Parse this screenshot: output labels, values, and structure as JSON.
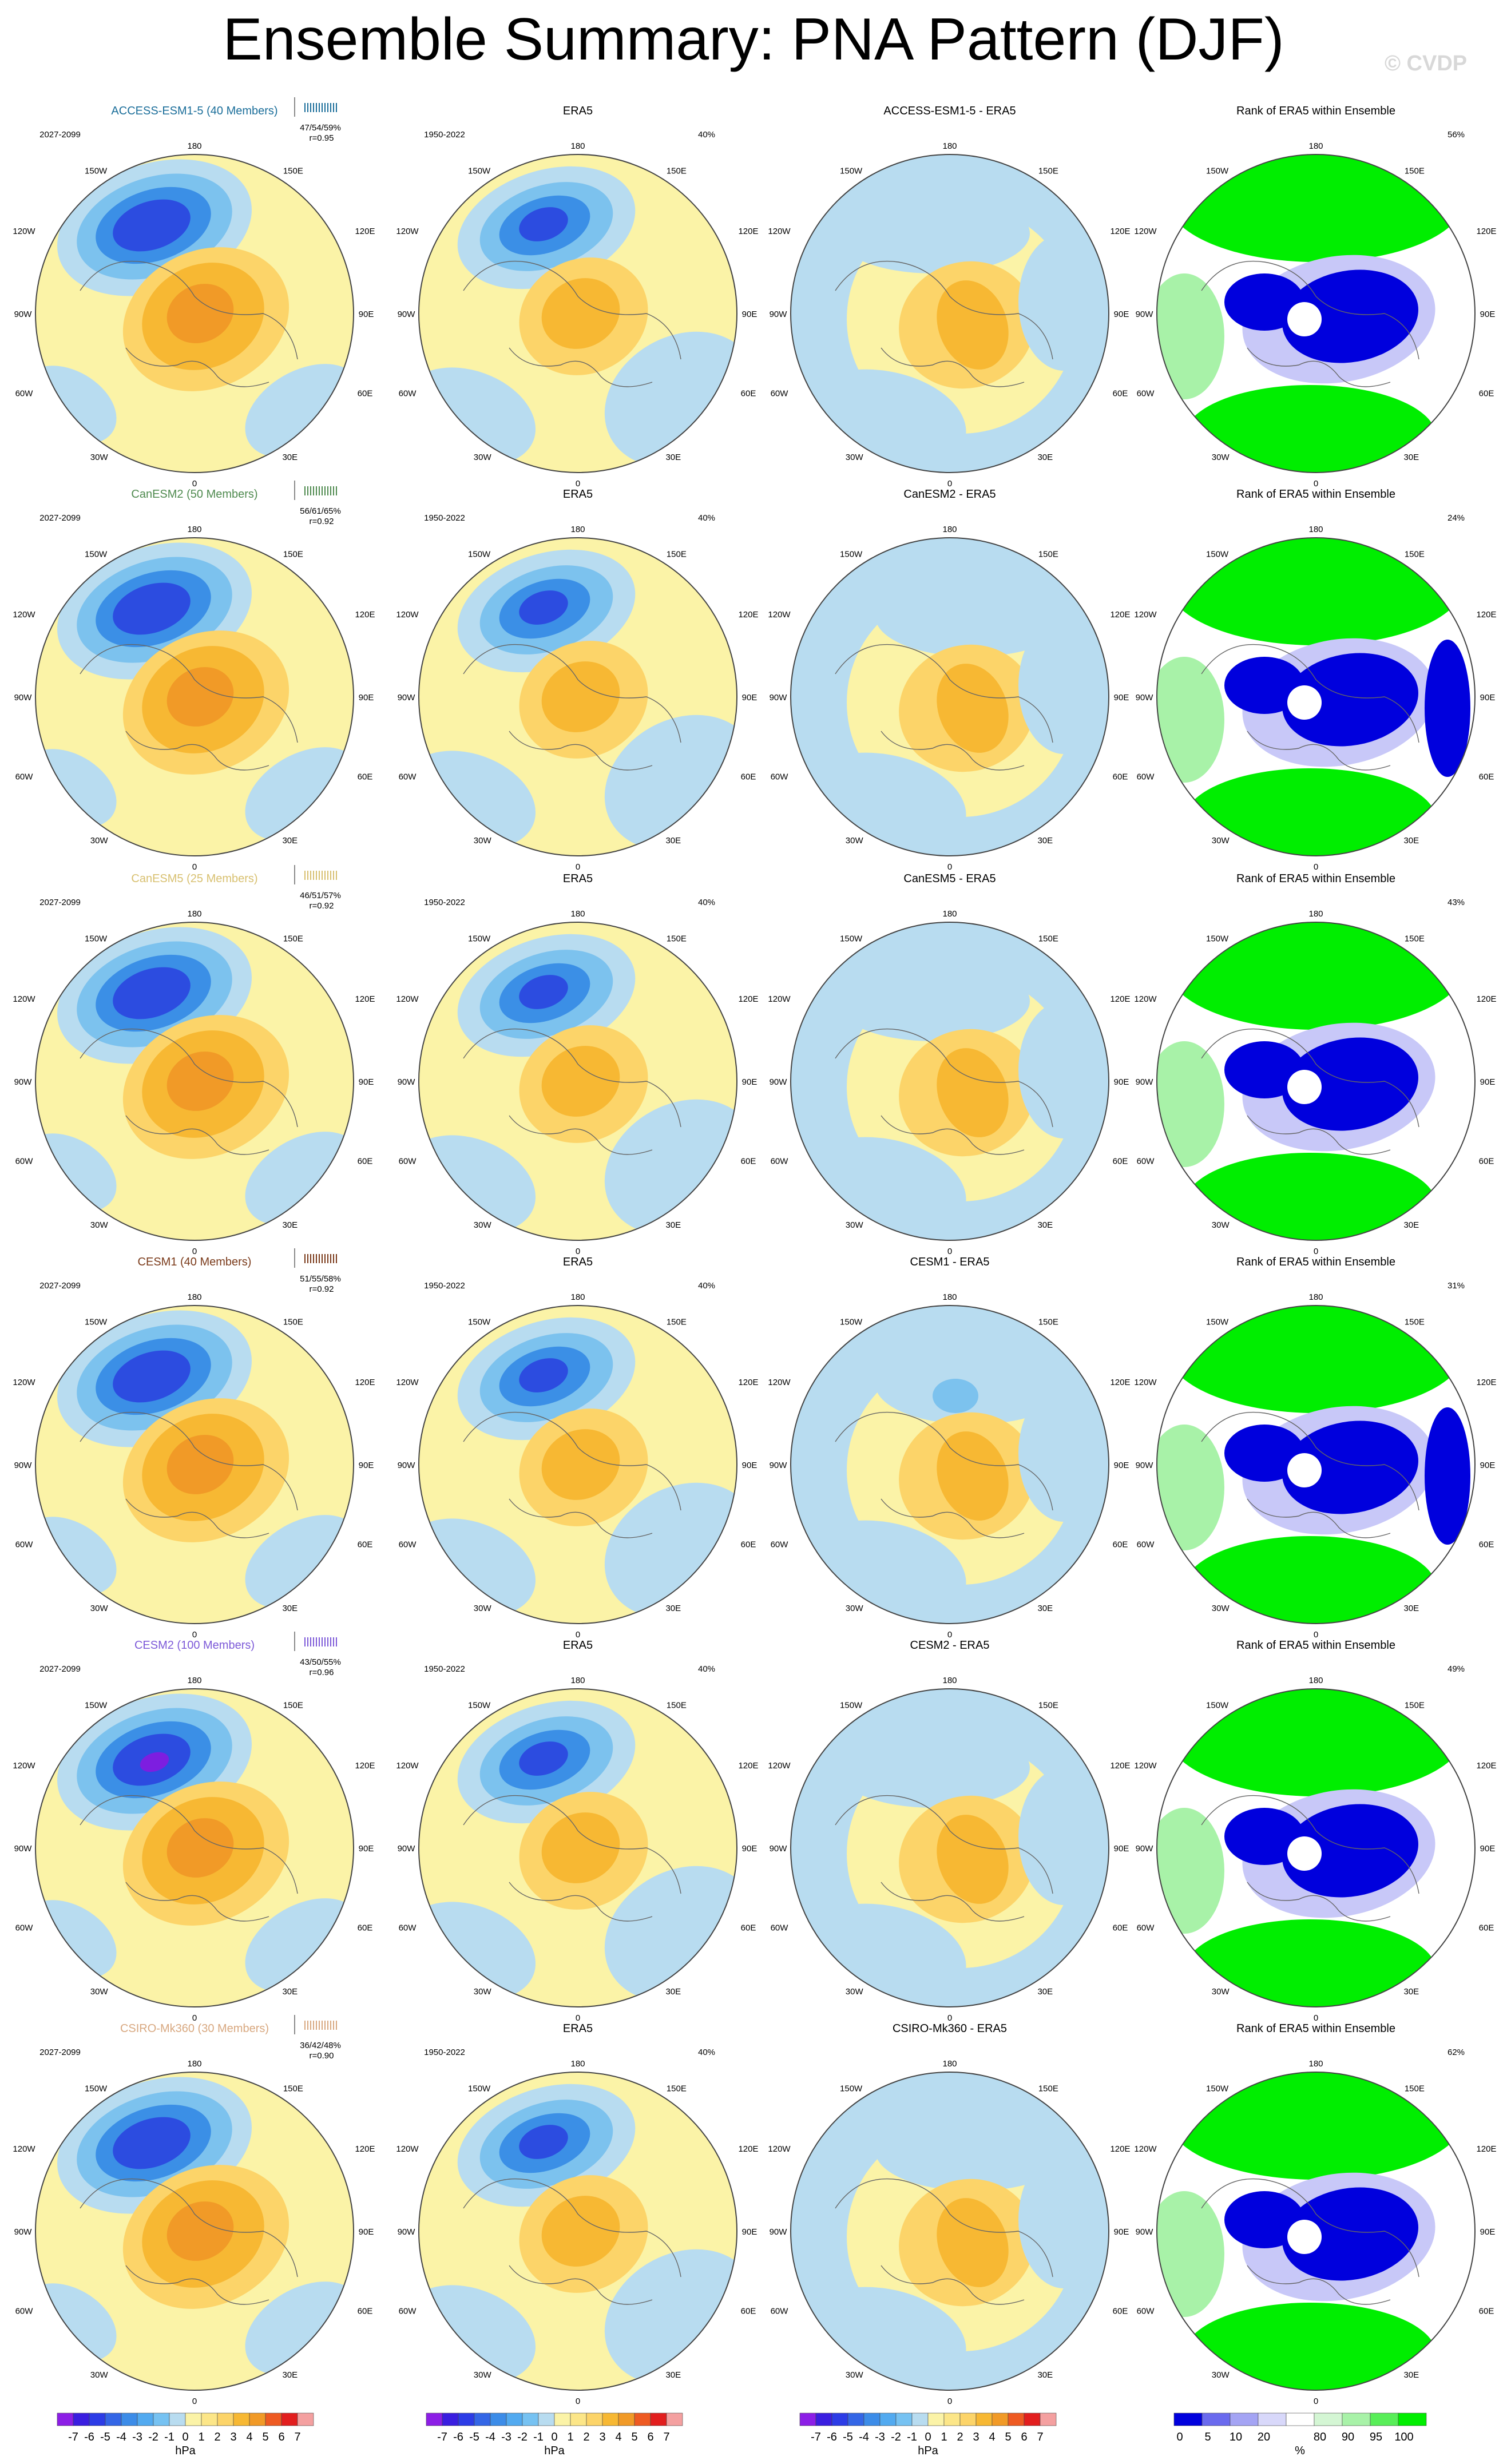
{
  "title": "Ensemble Summary: PNA Pattern (DJF)",
  "watermark": "© CVDP",
  "colors": {
    "yellow": "#fbf3a7",
    "light_blue": "#b8dcf0",
    "mid_blue": "#7cc2ee",
    "blue": "#3b8fe6",
    "dark_blue": "#2c4ce0",
    "navy": "#1c26c8",
    "purple": "#7d1ee0",
    "orange_light": "#fcd469",
    "orange": "#f7b833",
    "orange_dark": "#f19a27",
    "rank_green": "#00ee00",
    "rank_light_green": "#a8f2a8",
    "rank_blue": "#0000dd",
    "rank_light_blue": "#c8c8f8"
  },
  "rows": [
    {
      "model_title": "ACCESS-ESM1-5 (40 Members)",
      "title_color": "#1b6e9a",
      "model_years": "2027-2099",
      "model_stats": "47/54/59%",
      "model_r": "r=0.95",
      "obs_title": "ERA5",
      "obs_years": "1950-2022",
      "obs_pct": "40%",
      "diff_title": "ACCESS-ESM1-5 - ERA5",
      "rank_title": "Rank of ERA5 within Ensemble",
      "rank_pct": "56%"
    },
    {
      "model_title": "CanESM2 (50 Members)",
      "title_color": "#4f8a4f",
      "model_years": "2027-2099",
      "model_stats": "56/61/65%",
      "model_r": "r=0.92",
      "obs_title": "ERA5",
      "obs_years": "1950-2022",
      "obs_pct": "40%",
      "diff_title": "CanESM2 - ERA5",
      "rank_title": "Rank of ERA5 within Ensemble",
      "rank_pct": "24%"
    },
    {
      "model_title": "CanESM5 (25 Members)",
      "title_color": "#d8c070",
      "model_years": "2027-2099",
      "model_stats": "46/51/57%",
      "model_r": "r=0.92",
      "obs_title": "ERA5",
      "obs_years": "1950-2022",
      "obs_pct": "40%",
      "diff_title": "CanESM5 - ERA5",
      "rank_title": "Rank of ERA5 within Ensemble",
      "rank_pct": "43%"
    },
    {
      "model_title": "CESM1 (40 Members)",
      "title_color": "#7a3a1a",
      "model_years": "2027-2099",
      "model_stats": "51/55/58%",
      "model_r": "r=0.92",
      "obs_title": "ERA5",
      "obs_years": "1950-2022",
      "obs_pct": "40%",
      "diff_title": "CESM1 - ERA5",
      "rank_title": "Rank of ERA5 within Ensemble",
      "rank_pct": "31%"
    },
    {
      "model_title": "CESM2 (100 Members)",
      "title_color": "#7d5ad8",
      "model_years": "2027-2099",
      "model_stats": "43/50/55%",
      "model_r": "r=0.96",
      "obs_title": "ERA5",
      "obs_years": "1950-2022",
      "obs_pct": "40%",
      "diff_title": "CESM2 - ERA5",
      "rank_title": "Rank of ERA5 within Ensemble",
      "rank_pct": "49%"
    },
    {
      "model_title": "CSIRO-Mk360 (30 Members)",
      "title_color": "#d8a880",
      "model_years": "2027-2099",
      "model_stats": "36/42/48%",
      "model_r": "r=0.90",
      "obs_title": "ERA5",
      "obs_years": "1950-2022",
      "obs_pct": "40%",
      "diff_title": "CSIRO-Mk360 - ERA5",
      "rank_title": "Rank of ERA5 within Ensemble",
      "rank_pct": "62%"
    }
  ],
  "lon_labels": {
    "top": "180",
    "top_left": "150W",
    "top_right": "150E",
    "upper_left": "120W",
    "upper_right": "120E",
    "left": "90W",
    "right": "90E",
    "lower_left": "60W",
    "lower_right": "60E",
    "bottom_left": "30W",
    "bottom_right": "30E",
    "bottom": "0"
  },
  "colorbars": {
    "hpa_labels": [
      "-7",
      "-6",
      "-5",
      "-4",
      "-3",
      "-2",
      "-1",
      "0",
      "1",
      "2",
      "3",
      "4",
      "5",
      "6",
      "7"
    ],
    "hpa_unit": "hPa",
    "hpa_colors": [
      "#8c1ee6",
      "#3a1ee0",
      "#2c3ce6",
      "#3466e6",
      "#3c8ce8",
      "#52aaf0",
      "#76c2f2",
      "#b8dcf0",
      "#fbf3a7",
      "#fce688",
      "#fcd469",
      "#f7b833",
      "#f19a27",
      "#ee5a22",
      "#e21e1e",
      "#f4a0a0"
    ],
    "rank_labels": [
      "0",
      "5",
      "10",
      "20",
      "80",
      "90",
      "95",
      "100"
    ],
    "rank_unit": "%",
    "rank_colors": [
      "#0000dd",
      "#6a6aee",
      "#a4a4f4",
      "#d8d8fa",
      "#ffffff",
      "#d4f6d4",
      "#a8f2a8",
      "#58ee58",
      "#00ee00"
    ]
  }
}
